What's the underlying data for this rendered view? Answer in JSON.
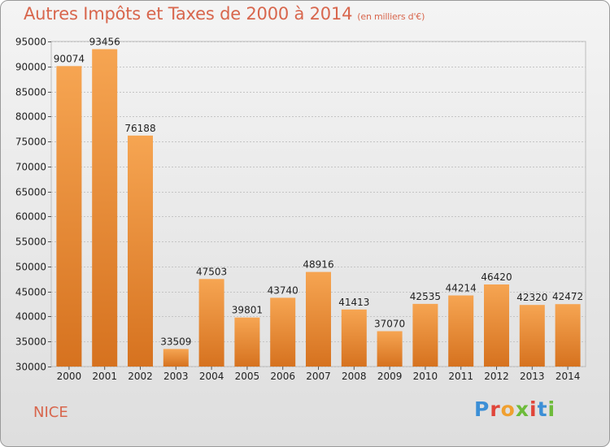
{
  "header": {
    "title": "Autres Impôts et Taxes de 2000 à 2014",
    "subtitle": "(en milliers d'€)"
  },
  "footer": {
    "city": "NICE",
    "logo": "Proxiti"
  },
  "colors": {
    "accent": "#d8664d",
    "bar_top": "#f6a552",
    "bar_bottom": "#d6721f"
  },
  "chart_data": {
    "type": "bar",
    "title": "Autres Impôts et Taxes de 2000 à 2014",
    "subtitle": "(en milliers d'€)",
    "xlabel": "",
    "ylabel": "",
    "ylim": [
      30000,
      95000
    ],
    "yticks": [
      30000,
      35000,
      40000,
      45000,
      50000,
      55000,
      60000,
      65000,
      70000,
      75000,
      80000,
      85000,
      90000,
      95000
    ],
    "grid": true,
    "categories": [
      "2000",
      "2001",
      "2002",
      "2003",
      "2004",
      "2005",
      "2006",
      "2007",
      "2008",
      "2009",
      "2010",
      "2011",
      "2012",
      "2013",
      "2014"
    ],
    "values": [
      90074,
      93456,
      76188,
      33509,
      47503,
      39801,
      43740,
      48916,
      41413,
      37070,
      42535,
      44214,
      46420,
      42320,
      42472
    ]
  }
}
